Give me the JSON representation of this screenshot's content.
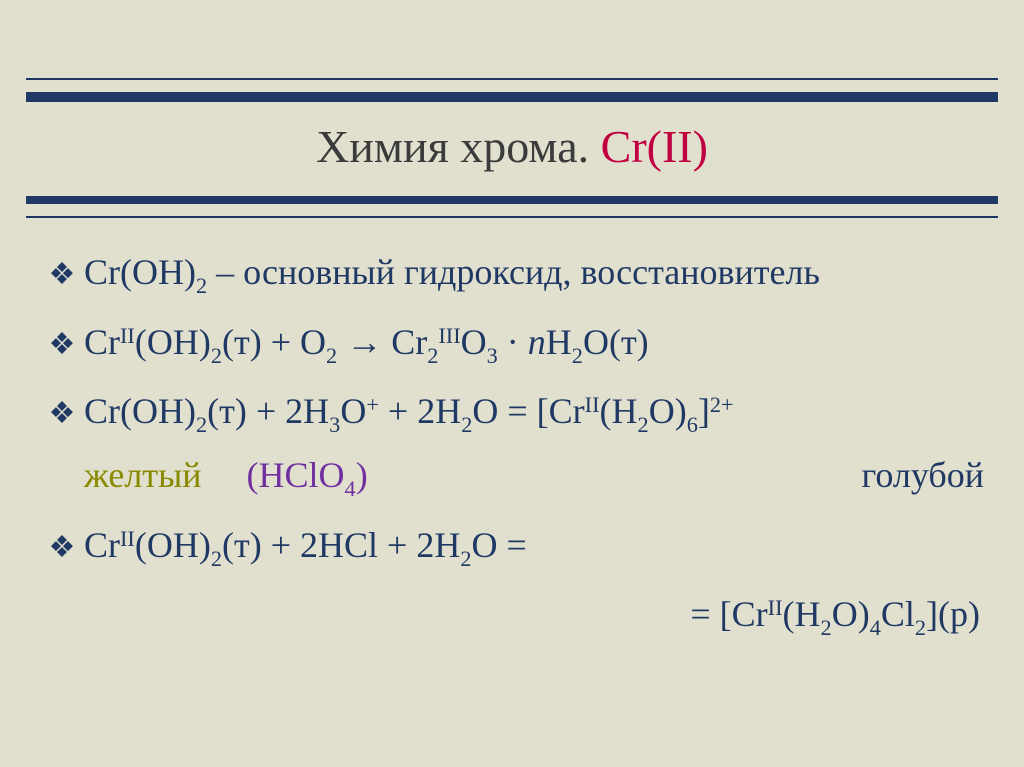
{
  "colors": {
    "background": "#e1e0ce",
    "bar": "#1f3864",
    "text": "#1f3864",
    "title_black": "#3b3b3b",
    "title_red": "#c00040",
    "yellow": "#8a8a00",
    "purple": "#7030a0"
  },
  "title": {
    "part1": "Химия хрома. ",
    "part2": "Cr(II)",
    "fontsize_pt": 34
  },
  "body": {
    "fontsize_pt": 27,
    "bullet_glyph": "❖",
    "line1": "Cr(OH)₂ – основный гидроксид, восстановитель",
    "line2": "CrᴵᴵI(OH)₂(т) + O₂ → Cr₂ᴵᴵᴵO₃ · nH₂O(т)",
    "line3": "Cr(OH)₂(т) + 2H₃O⁺ + 2H₂O = [Crᴵᴵ(H₂O)₆]²⁺",
    "line3_yellow": "желтый",
    "line3_purple": "(HClO₄)",
    "line3_blue_label": "голубой",
    "line4": "CrᴵᴵI(OH)₂(т) + 2HCl + 2H₂O =",
    "line4_rhs": "= [Crᴵᴵ(H₂O)₄Cl₂](р)"
  }
}
